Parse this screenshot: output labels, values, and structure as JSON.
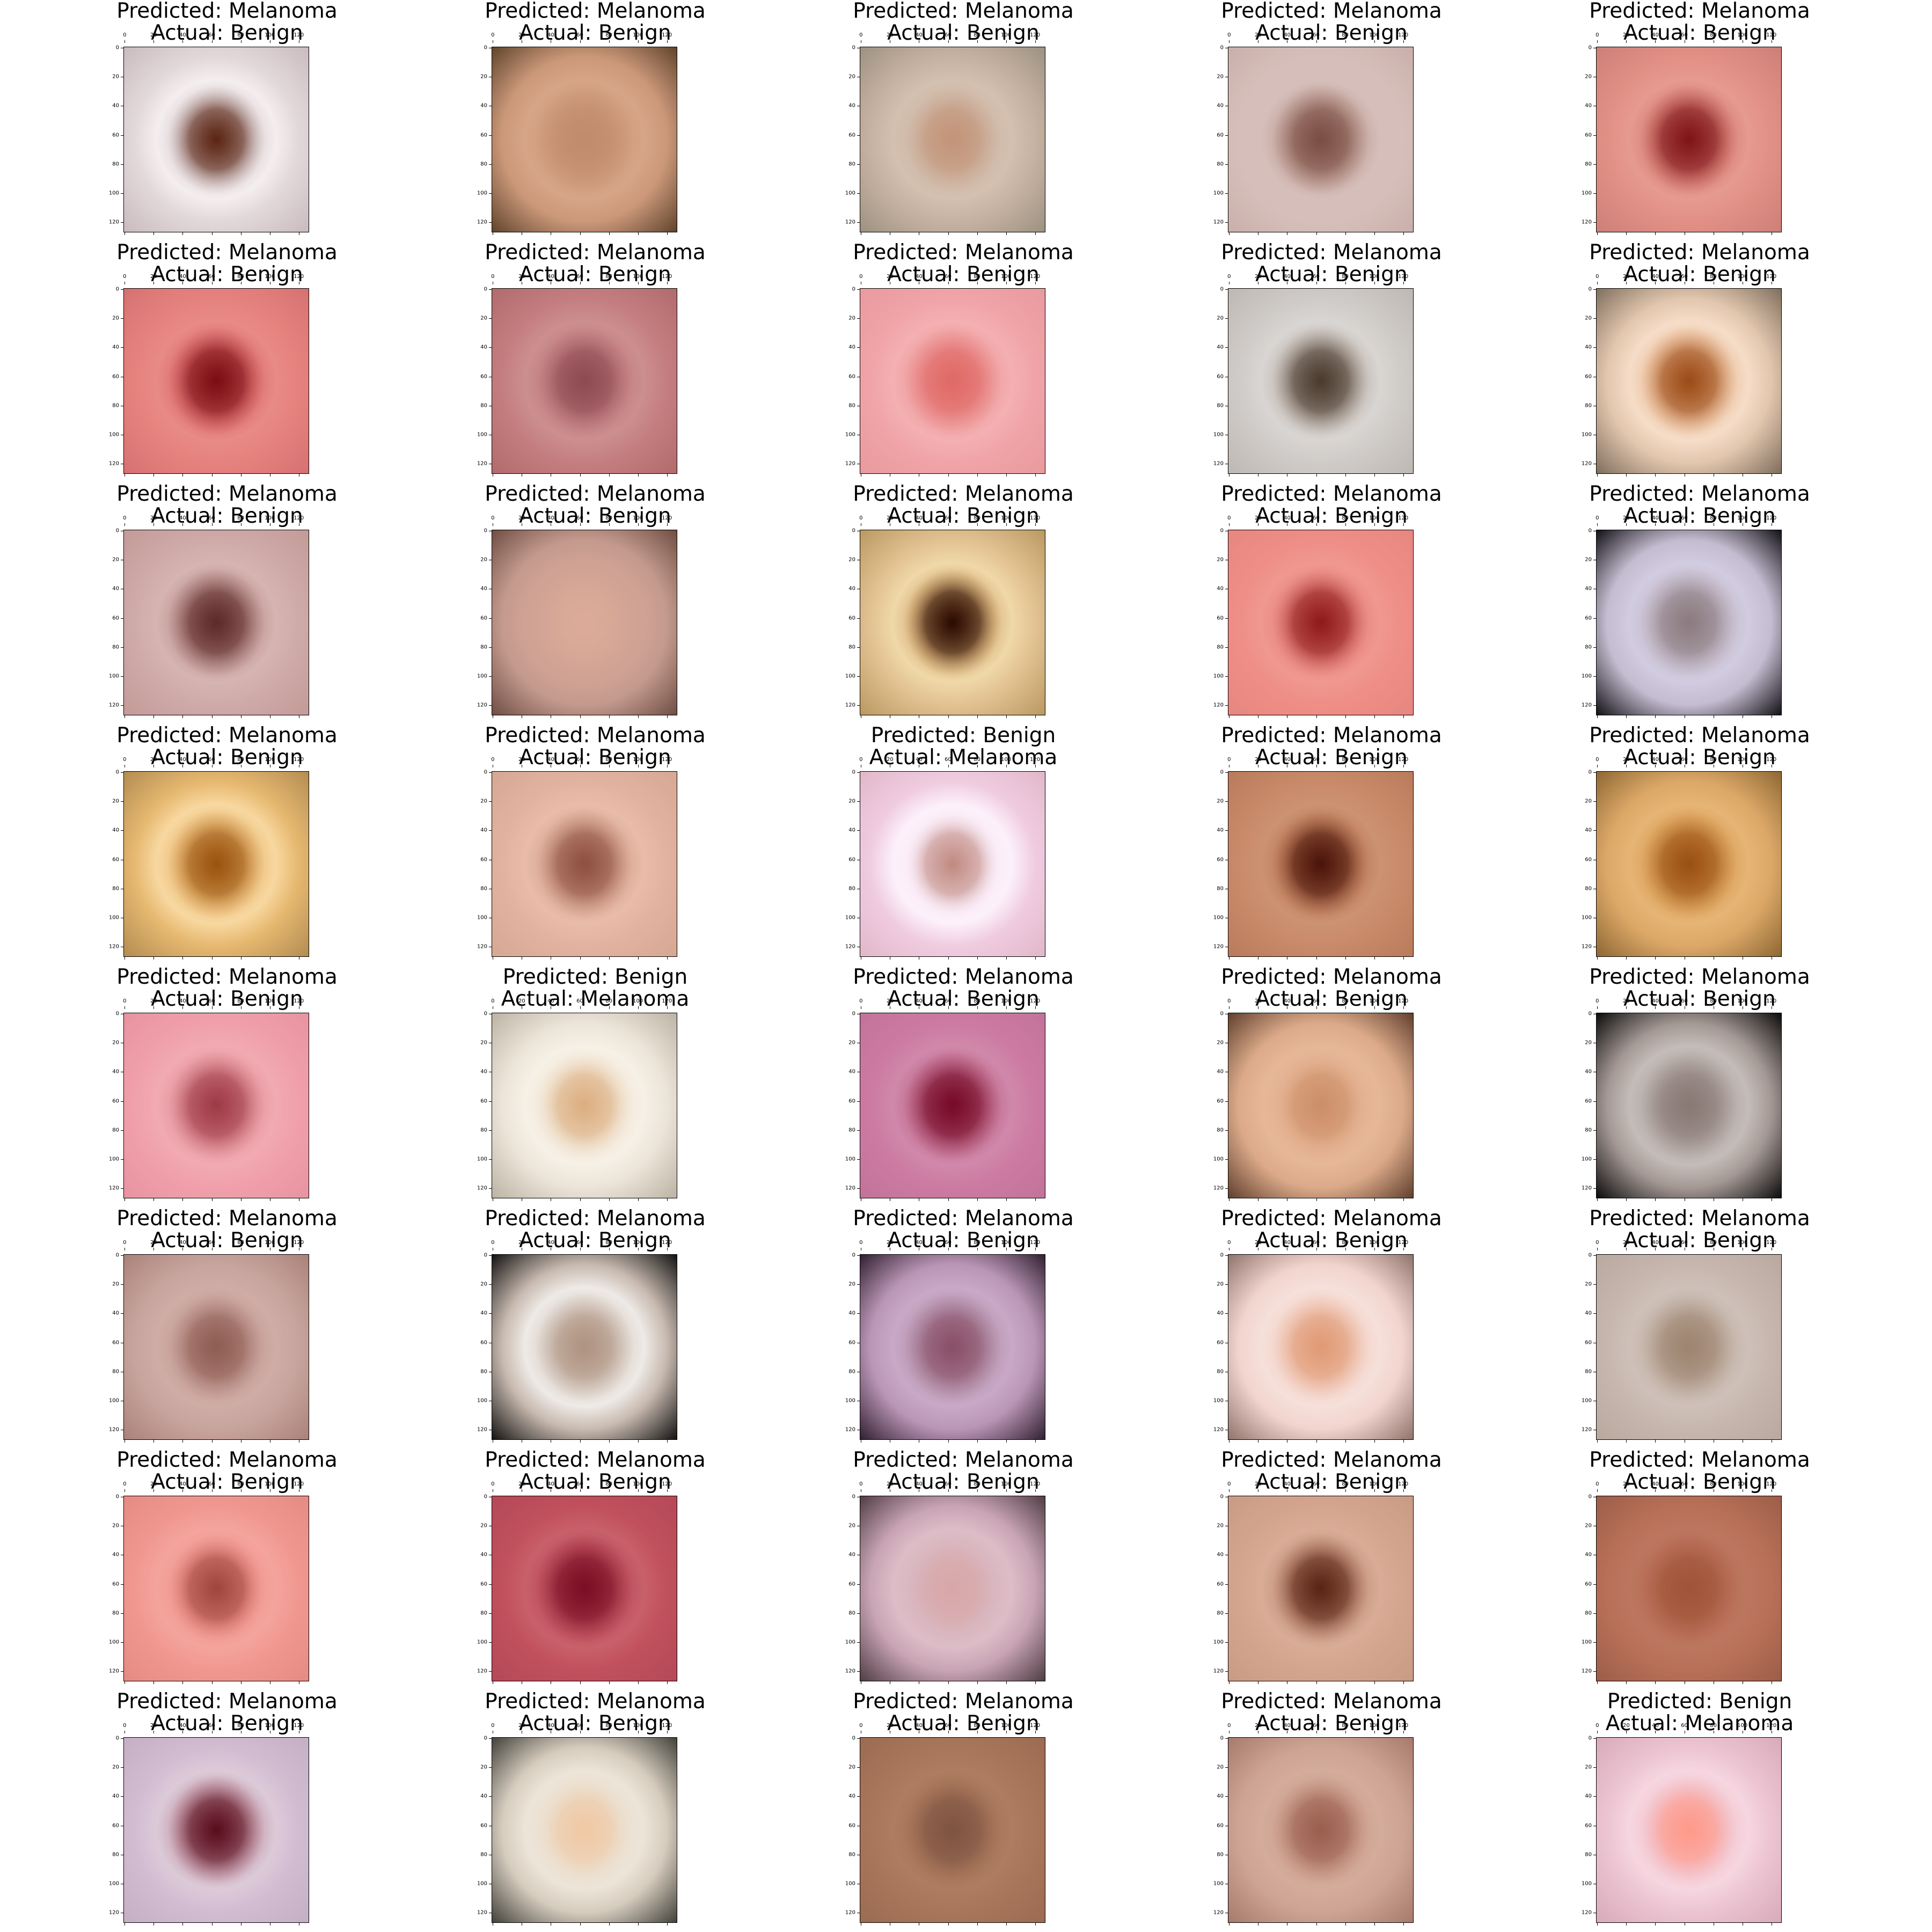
{
  "figure": {
    "axis_ticks": [
      "0",
      "20",
      "40",
      "60",
      "80",
      "100",
      "120"
    ],
    "panels": [
      {
        "predicted": "Predicted: Melanoma",
        "actual": "Actual: Benign",
        "bg": "#e2d8da",
        "mid": "#b7a2a3",
        "lesion": "#5b2412",
        "ring": "#f4eeef",
        "edge": "#c8b9bc"
      },
      {
        "predicted": "Predicted: Melanoma",
        "actual": "Actual: Benign",
        "bg": "#cc987a",
        "mid": "#c48e6e",
        "lesion": "#c08c6d",
        "ring": "#d6a487",
        "edge": "#5a4028"
      },
      {
        "predicted": "Predicted: Melanoma",
        "actual": "Actual: Benign",
        "bg": "#c7b2a2",
        "mid": "#c9ad99",
        "lesion": "#c39478",
        "ring": "#d4c0b0",
        "edge": "#9a9080"
      },
      {
        "predicted": "Predicted: Melanoma",
        "actual": "Actual: Benign",
        "bg": "#d6bfba",
        "mid": "#a47a6e",
        "lesion": "#7b4e44",
        "ring": "#d6bfba",
        "edge": "#c9aeaa"
      },
      {
        "predicted": "Predicted: Melanoma",
        "actual": "Actual: Benign",
        "bg": "#e29086",
        "mid": "#c05a52",
        "lesion": "#7e1418",
        "ring": "#e69a90",
        "edge": "#cc7e76"
      },
      {
        "predicted": "Predicted: Melanoma",
        "actual": "Actual: Benign",
        "bg": "#e6827e",
        "mid": "#c84a4c",
        "lesion": "#7a0d14",
        "ring": "#e88a86",
        "edge": "#d47070"
      },
      {
        "predicted": "Predicted: Melanoma",
        "actual": "Actual: Benign",
        "bg": "#c47e80",
        "mid": "#b36a70",
        "lesion": "#8e4a52",
        "ring": "#cc8e90",
        "edge": "#b06a6c"
      },
      {
        "predicted": "Predicted: Melanoma",
        "actual": "Actual: Benign",
        "bg": "#f0a4a8",
        "mid": "#e68080",
        "lesion": "#e06a66",
        "ring": "#f4b0b2",
        "edge": "#e89a9e"
      },
      {
        "predicted": "Predicted: Melanoma",
        "actual": "Actual: Benign",
        "bg": "#cfcbc8",
        "mid": "#9c8e82",
        "lesion": "#4a3a2e",
        "ring": "#d9d5d2",
        "edge": "#bdb7b2"
      },
      {
        "predicted": "Predicted: Melanoma",
        "actual": "Actual: Benign",
        "bg": "#e2c6ae",
        "mid": "#d99866",
        "lesion": "#9c4c18",
        "ring": "#f6ddc8",
        "edge": "#7a6a5a"
      },
      {
        "predicted": "Predicted: Melanoma",
        "actual": "Actual: Benign",
        "bg": "#cfaaa8",
        "mid": "#9a6a66",
        "lesion": "#5e2a2a",
        "ring": "#d6b4b2",
        "edge": "#c29a98"
      },
      {
        "predicted": "Predicted: Melanoma",
        "actual": "Actual: Benign",
        "bg": "#c49a8e",
        "mid": "#d6a898",
        "lesion": "#dcaa98",
        "ring": "#cfa294",
        "edge": "#6a4a40"
      },
      {
        "predicted": "Predicted: Melanoma",
        "actual": "Actual: Benign",
        "bg": "#e2c292",
        "mid": "#b07a3e",
        "lesion": "#2a0a02",
        "ring": "#f0d8a8",
        "edge": "#b89660"
      },
      {
        "predicted": "Predicted: Melanoma",
        "actual": "Actual: Benign",
        "bg": "#ee8e86",
        "mid": "#d86a66",
        "lesion": "#8e1a1a",
        "ring": "#f09890",
        "edge": "#e68680"
      },
      {
        "predicted": "Predicted: Melanoma",
        "actual": "Actual: Benign",
        "bg": "#c4bcd0",
        "mid": "#b0a2ac",
        "lesion": "#8c7c80",
        "ring": "#d2cce0",
        "edge": "#0a080c"
      },
      {
        "predicted": "Predicted: Melanoma",
        "actual": "Actual: Benign",
        "bg": "#e6b870",
        "mid": "#d49444",
        "lesion": "#9a5410",
        "ring": "#f8d8a0",
        "edge": "#b08a50"
      },
      {
        "predicted": "Predicted: Melanoma",
        "actual": "Actual: Benign",
        "bg": "#e2b2a0",
        "mid": "#c08a76",
        "lesion": "#8e5040",
        "ring": "#e8bca8",
        "edge": "#d4a892"
      },
      {
        "predicted": "Predicted: Benign",
        "actual": "Actual: Melanoma",
        "bg": "#f0cce0",
        "mid": "#f8e6f4",
        "lesion": "#c08a80",
        "ring": "#fcf0fa",
        "edge": "#e0b6c8"
      },
      {
        "predicted": "Predicted: Melanoma",
        "actual": "Actual: Benign",
        "bg": "#c98a6a",
        "mid": "#a45c3a",
        "lesion": "#4a140a",
        "ring": "#cc9272",
        "edge": "#b87a5a"
      },
      {
        "predicted": "Predicted: Melanoma",
        "actual": "Actual: Benign",
        "bg": "#dca868",
        "mid": "#c88438",
        "lesion": "#9a5014",
        "ring": "#e6b474",
        "edge": "#8a6430"
      },
      {
        "predicted": "Predicted: Melanoma",
        "actual": "Actual: Benign",
        "bg": "#f0a0aa",
        "mid": "#d07882",
        "lesion": "#9e3a46",
        "ring": "#f2aab2",
        "edge": "#e892a0"
      },
      {
        "predicted": "Predicted: Benign",
        "actual": "Actual: Melanoma",
        "bg": "#ece4d8",
        "mid": "#eedcc4",
        "lesion": "#dcae80",
        "ring": "#f6f0e6",
        "edge": "#b8b0a0"
      },
      {
        "predicted": "Predicted: Melanoma",
        "actual": "Actual: Benign",
        "bg": "#cc7aa2",
        "mid": "#a64060",
        "lesion": "#760a28",
        "ring": "#d088aa",
        "edge": "#c27298"
      },
      {
        "predicted": "Predicted: Melanoma",
        "actual": "Actual: Benign",
        "bg": "#dcaa8a",
        "mid": "#e2ae8c",
        "lesion": "#cc8e68",
        "ring": "#e6b698",
        "edge": "#5a3a28"
      },
      {
        "predicted": "Predicted: Melanoma",
        "actual": "Actual: Benign",
        "bg": "#a49894",
        "mid": "#9a8c88",
        "lesion": "#8a7a76",
        "ring": "#c4bcb8",
        "edge": "#050505"
      },
      {
        "predicted": "Predicted: Melanoma",
        "actual": "Actual: Benign",
        "bg": "#c8a49e",
        "mid": "#b48a82",
        "lesion": "#8e5c52",
        "ring": "#d0aca6",
        "edge": "#a88078"
      },
      {
        "predicted": "Predicted: Melanoma",
        "actual": "Actual: Benign",
        "bg": "#c8bab0",
        "mid": "#c0ac9e",
        "lesion": "#b09482",
        "ring": "#eeeae6",
        "edge": "#0a0a0a"
      },
      {
        "predicted": "Predicted: Melanoma",
        "actual": "Actual: Benign",
        "bg": "#ba96b6",
        "mid": "#a27a90",
        "lesion": "#8a5068",
        "ring": "#c8a8c6",
        "edge": "#2a1a2a"
      },
      {
        "predicted": "Predicted: Melanoma",
        "actual": "Actual: Benign",
        "bg": "#f2d4ce",
        "mid": "#eebca8",
        "lesion": "#e09a74",
        "ring": "#f6e0da",
        "edge": "#8a7068"
      },
      {
        "predicted": "Predicted: Melanoma",
        "actual": "Actual: Benign",
        "bg": "#c6b6ae",
        "mid": "#b4a090",
        "lesion": "#9e8470",
        "ring": "#cec0b8",
        "edge": "#b8a89e"
      },
      {
        "predicted": "Predicted: Melanoma",
        "actual": "Actual: Benign",
        "bg": "#f09890",
        "mid": "#e8867e",
        "lesion": "#a0443e",
        "ring": "#f4a49c",
        "edge": "#e48a82"
      },
      {
        "predicted": "Predicted: Melanoma",
        "actual": "Actual: Benign",
        "bg": "#c0505c",
        "mid": "#a63044",
        "lesion": "#7a0e24",
        "ring": "#c8606a",
        "edge": "#b44858"
      },
      {
        "predicted": "Predicted: Melanoma",
        "actual": "Actual: Benign",
        "bg": "#c8a4b4",
        "mid": "#d6b0b8",
        "lesion": "#d8a8a8",
        "ring": "#dcbcc6",
        "edge": "#4a3840"
      },
      {
        "predicted": "Predicted: Melanoma",
        "actual": "Actual: Benign",
        "bg": "#d4a48e",
        "mid": "#a8705a",
        "lesion": "#5a2414",
        "ring": "#d8ac96",
        "edge": "#c89a84"
      },
      {
        "predicted": "Predicted: Melanoma",
        "actual": "Actual: Benign",
        "bg": "#b87058",
        "mid": "#b06048",
        "lesion": "#a05438",
        "ring": "#bc7660",
        "edge": "#9a5c48"
      },
      {
        "predicted": "Predicted: Melanoma",
        "actual": "Actual: Benign",
        "bg": "#d2bcd2",
        "mid": "#a66072",
        "lesion": "#5a0e1c",
        "ring": "#dccad8",
        "edge": "#c4aec4"
      },
      {
        "predicted": "Predicted: Melanoma",
        "actual": "Actual: Benign",
        "bg": "#d6ccbe",
        "mid": "#eadcc8",
        "lesion": "#f0c8a4",
        "ring": "#ece4d8",
        "edge": "#3a3a34"
      },
      {
        "predicted": "Predicted: Melanoma",
        "actual": "Actual: Benign",
        "bg": "#a8765a",
        "mid": "#9a6a50",
        "lesion": "#7e5442",
        "ring": "#ae7c60",
        "edge": "#9a6a52"
      },
      {
        "predicted": "Predicted: Melanoma",
        "actual": "Actual: Benign",
        "bg": "#cea494",
        "mid": "#c08c7a",
        "lesion": "#9a5e4e",
        "ring": "#d4ac9c",
        "edge": "#a4786a"
      },
      {
        "predicted": "Predicted: Benign",
        "actual": "Actual: Melanoma",
        "bg": "#ecc4d2",
        "mid": "#f0b0b6",
        "lesion": "#ff9a8a",
        "ring": "#f6d6e0",
        "edge": "#d8a8b8"
      }
    ]
  }
}
